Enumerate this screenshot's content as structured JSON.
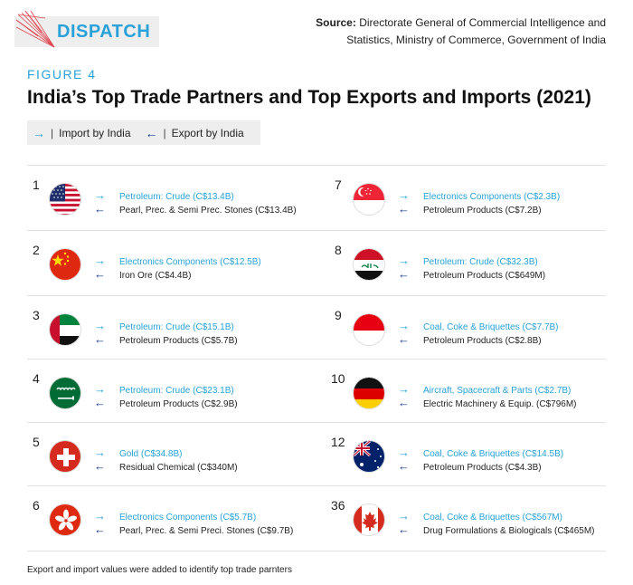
{
  "brand": {
    "name": "DISPATCH"
  },
  "source": {
    "label": "Source:",
    "text": "Directorate General of Commercial Intelligence and Statistics, Ministry of Commerce, Government of India"
  },
  "figure_label": "FIGURE 4",
  "title": "India’s Top Trade Partners and Top Exports and Imports (2021)",
  "legend": {
    "import_label": "Import by India",
    "export_label": "Export by India",
    "separator": "|",
    "import_arrow": "→",
    "export_arrow": "←",
    "colors": {
      "export_text": "#2aa1d8",
      "import_arrow": "#1c3a8a"
    }
  },
  "partners_left": [
    {
      "rank": "1",
      "flag": "usa-flag-icon",
      "export": "Petroleum: Crude (C$13.4B)",
      "import": "Pearl, Prec. & Semi Prec. Stones (C$13.4B)"
    },
    {
      "rank": "2",
      "flag": "china-flag-icon",
      "export": "Electronics Components (C$12.5B)",
      "import": "Iron Ore (C$4.4B)"
    },
    {
      "rank": "3",
      "flag": "uae-flag-icon",
      "export": "Petroleum: Crude (C$15.1B)",
      "import": "Petroleum Products (C$5.7B)"
    },
    {
      "rank": "4",
      "flag": "saudi-arabia-flag-icon",
      "export": "Petroleum: Crude (C$23.1B)",
      "import": "Petroleum Products (C$2.9B)"
    },
    {
      "rank": "5",
      "flag": "switzerland-flag-icon",
      "export": "Gold (C$34.8B)",
      "import": "Residual Chemical (C$340M)"
    },
    {
      "rank": "6",
      "flag": "hong-kong-flag-icon",
      "export": "Electronics Components (C$5.7B)",
      "import": "Pearl, Prec. & Semi Preci. Stones (C$9.7B)"
    }
  ],
  "partners_right": [
    {
      "rank": "7",
      "flag": "singapore-flag-icon",
      "export": "Electronics Components (C$2.3B)",
      "import": "Petroleum Products (C$7.2B)"
    },
    {
      "rank": "8",
      "flag": "iraq-flag-icon",
      "export": "Petroleum: Crude (C$32.3B)",
      "import": "Petroleum Products (C$649M)"
    },
    {
      "rank": "9",
      "flag": "indonesia-flag-icon",
      "export": "Coal, Coke & Briquettes (C$7.7B)",
      "import": "Petroleum Products (C$2.8B)"
    },
    {
      "rank": "10",
      "flag": "germany-flag-icon",
      "export": "Aircraft, Spacecraft & Parts (C$2.7B)",
      "import": "Electric Machinery & Equip. (C$796M)"
    },
    {
      "rank": "12",
      "flag": "australia-flag-icon",
      "export": "Coal, Coke & Briquettes (C$14.5B)",
      "import": "Petroleum Products (C$4.3B)"
    },
    {
      "rank": "36",
      "flag": "canada-flag-icon",
      "export": "Coal, Coke & Briquettes (C$567M)",
      "import": "Drug Formulations & Biologicals (C$465M)"
    }
  ],
  "footnote": "Export and import values were added to identify top trade parnters"
}
